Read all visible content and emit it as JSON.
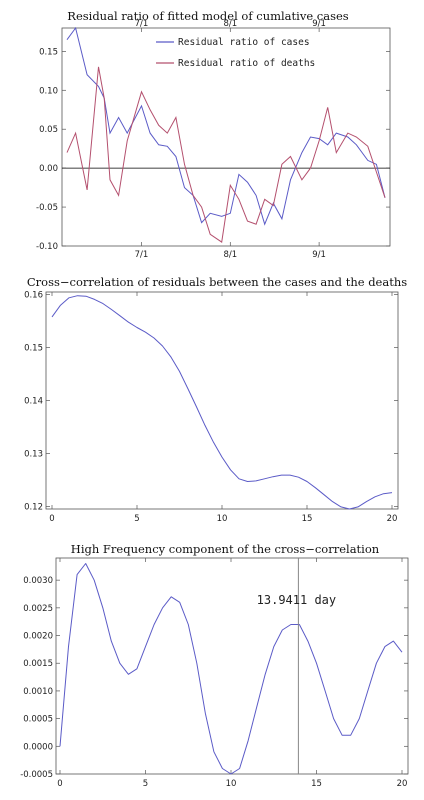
{
  "chart_data": [
    {
      "type": "line",
      "title": "Residual ratio of fitted model of cumlative cases",
      "x_ticks": [
        "7/1",
        "8/1",
        "9/1"
      ],
      "x": [
        "6/5",
        "6/8",
        "6/12",
        "6/16",
        "6/18",
        "6/20",
        "6/23",
        "6/26",
        "7/1",
        "7/4",
        "7/7",
        "7/10",
        "7/13",
        "7/16",
        "7/19",
        "7/22",
        "7/25",
        "7/29",
        "8/1",
        "8/4",
        "8/7",
        "8/10",
        "8/13",
        "8/16",
        "8/19",
        "8/22",
        "8/26",
        "8/29",
        "9/1",
        "9/4",
        "9/7",
        "9/11",
        "9/14",
        "9/18",
        "9/21",
        "9/24"
      ],
      "ylim": [
        -0.1,
        0.18
      ],
      "y_ticks": [
        -0.1,
        -0.05,
        0.0,
        0.05,
        0.1,
        0.15
      ],
      "y_tick_labels": [
        "-0.10",
        "-0.05",
        "0.00",
        "0.05",
        "0.10",
        "0.15"
      ],
      "series": [
        {
          "name": "Residual ratio of cases",
          "color": "#5b5bc7",
          "values": [
            0.165,
            0.18,
            0.12,
            0.105,
            0.09,
            0.045,
            0.065,
            0.045,
            0.08,
            0.045,
            0.03,
            0.028,
            0.015,
            -0.025,
            -0.035,
            -0.07,
            -0.058,
            -0.062,
            -0.058,
            -0.008,
            -0.018,
            -0.035,
            -0.072,
            -0.045,
            -0.065,
            -0.015,
            0.02,
            0.04,
            0.038,
            0.03,
            0.045,
            0.04,
            0.03,
            0.01,
            0.005,
            -0.038
          ]
        },
        {
          "name": "Residual ratio of deaths",
          "color": "#b4506e",
          "values": [
            0.02,
            0.045,
            -0.028,
            0.13,
            0.09,
            -0.015,
            -0.035,
            0.035,
            0.098,
            0.075,
            0.055,
            0.045,
            0.065,
            0.005,
            -0.035,
            -0.05,
            -0.085,
            -0.095,
            -0.022,
            -0.04,
            -0.068,
            -0.072,
            -0.04,
            -0.048,
            0.005,
            0.015,
            -0.015,
            0.0,
            0.035,
            0.078,
            0.02,
            0.045,
            0.04,
            0.028,
            -0.005,
            -0.038
          ]
        }
      ],
      "legend_position": "top-center",
      "zero_line": true
    },
    {
      "type": "line",
      "title": "Cross−correlation of residuals between the cases and the deaths",
      "xlim": [
        0,
        20
      ],
      "x_ticks": [
        0,
        5,
        10,
        15,
        20
      ],
      "ylim": [
        0.1195,
        0.1605
      ],
      "y_ticks": [
        0.12,
        0.13,
        0.14,
        0.15,
        0.16
      ],
      "y_tick_labels": [
        "0.12",
        "0.13",
        "0.14",
        "0.15",
        "0.16"
      ],
      "series": [
        {
          "color": "#5b5bc7",
          "x": [
            0,
            0.5,
            1,
            1.5,
            2,
            2.5,
            3,
            3.5,
            4,
            4.5,
            5,
            5.5,
            6,
            6.5,
            7,
            7.5,
            8,
            8.5,
            9,
            9.5,
            10,
            10.5,
            11,
            11.5,
            12,
            12.5,
            13,
            13.5,
            14,
            14.5,
            15,
            15.5,
            16,
            16.5,
            17,
            17.5,
            18,
            18.5,
            19,
            19.5,
            20
          ],
          "values": [
            0.1558,
            0.158,
            0.1594,
            0.1598,
            0.1597,
            0.1591,
            0.1583,
            0.1572,
            0.156,
            0.1548,
            0.1538,
            0.1529,
            0.1518,
            0.1503,
            0.1482,
            0.1455,
            0.1422,
            0.1388,
            0.1353,
            0.1321,
            0.1293,
            0.1269,
            0.1252,
            0.1247,
            0.1248,
            0.1252,
            0.1256,
            0.1259,
            0.1259,
            0.1255,
            0.1247,
            0.1235,
            0.1222,
            0.1209,
            0.1199,
            0.1195,
            0.1199,
            0.1209,
            0.1218,
            0.1224,
            0.1226
          ]
        }
      ]
    },
    {
      "type": "line",
      "title": "High Frequency component of the cross−correlation",
      "xlim": [
        0,
        20
      ],
      "x_ticks": [
        0,
        5,
        10,
        15,
        20
      ],
      "ylim": [
        -0.0005,
        0.0034
      ],
      "y_ticks": [
        -0.0005,
        0.0,
        0.0005,
        0.001,
        0.0015,
        0.002,
        0.0025,
        0.003
      ],
      "y_tick_labels": [
        "-0.0005",
        "0.0000",
        "0.0005",
        "0.0010",
        "0.0015",
        "0.0020",
        "0.0025",
        "0.0030"
      ],
      "series": [
        {
          "color": "#5b5bc7",
          "x": [
            0,
            0.5,
            1,
            1.5,
            2,
            2.5,
            3,
            3.5,
            4,
            4.5,
            5,
            5.5,
            6,
            6.5,
            7,
            7.5,
            8,
            8.5,
            9,
            9.5,
            10,
            10.5,
            11,
            11.5,
            12,
            12.5,
            13,
            13.5,
            14,
            14.5,
            15,
            15.5,
            16,
            16.5,
            17,
            17.5,
            18,
            18.5,
            19,
            19.5,
            20
          ],
          "values": [
            0.0,
            0.0018,
            0.0031,
            0.0033,
            0.003,
            0.0025,
            0.0019,
            0.0015,
            0.0013,
            0.0014,
            0.0018,
            0.0022,
            0.0025,
            0.0027,
            0.0026,
            0.0022,
            0.0015,
            0.0006,
            -0.0001,
            -0.0004,
            -0.0005,
            -0.0004,
            0.0001,
            0.0007,
            0.0013,
            0.0018,
            0.0021,
            0.0022,
            0.0022,
            0.0019,
            0.0015,
            0.001,
            0.0005,
            0.0002,
            0.0002,
            0.0005,
            0.001,
            0.0015,
            0.0018,
            0.0019,
            0.0017
          ]
        }
      ],
      "marker_line": {
        "x": 13.9411,
        "label": "13.9411 day"
      }
    }
  ]
}
